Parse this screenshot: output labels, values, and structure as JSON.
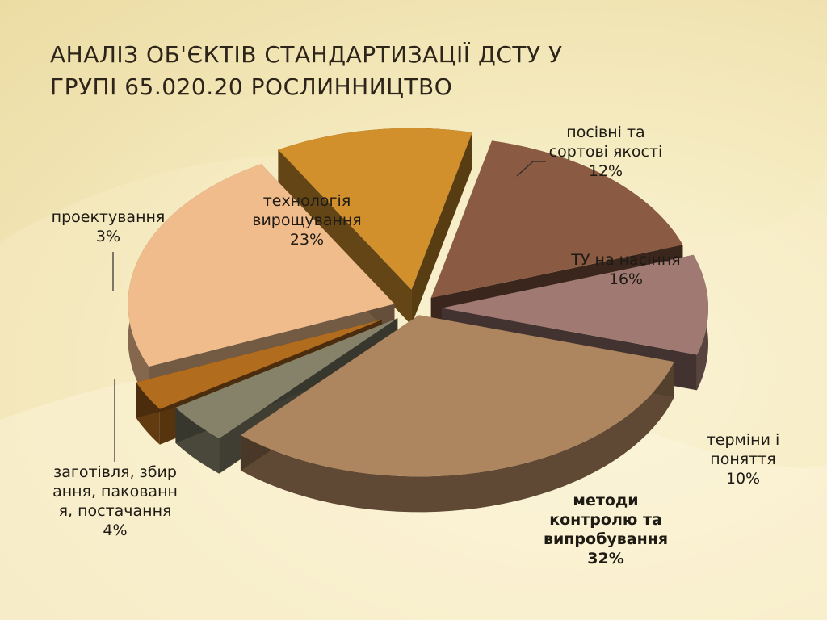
{
  "slide": {
    "title_line1": "Аналіз об'єктів стандартизації  ДСТУ у",
    "title_line2": "групі 65.020.20 рослинництво"
  },
  "chart_data": {
    "type": "pie",
    "title": "",
    "unit": "%",
    "slices": [
      {
        "label_lines": [
          "посівні та",
          "сортові якості"
        ],
        "value": 12,
        "value_text": "12%",
        "color": "#d1902c"
      },
      {
        "label_lines": [
          "ТУ на насіння"
        ],
        "value": 16,
        "value_text": "16%",
        "color": "#8b5a42"
      },
      {
        "label_lines": [
          "терміни і",
          "поняття"
        ],
        "value": 10,
        "value_text": "10%",
        "color": "#a07a72"
      },
      {
        "label_lines": [
          "методи",
          "контролю та",
          "випробування"
        ],
        "value": 32,
        "value_text": "32%",
        "color": "#ad855e",
        "bold": true
      },
      {
        "label_lines": [
          "заготівля, збир",
          "ання, пакованн",
          "я, постачання"
        ],
        "value": 4,
        "value_text": "4%",
        "color": "#86826a"
      },
      {
        "label_lines": [
          "проектування"
        ],
        "value": 3,
        "value_text": "3%",
        "color": "#b26c1e"
      },
      {
        "label_lines": [
          "технологія",
          "вирощування"
        ],
        "value": 23,
        "value_text": "23%",
        "color": "#f0bc8c"
      }
    ]
  }
}
